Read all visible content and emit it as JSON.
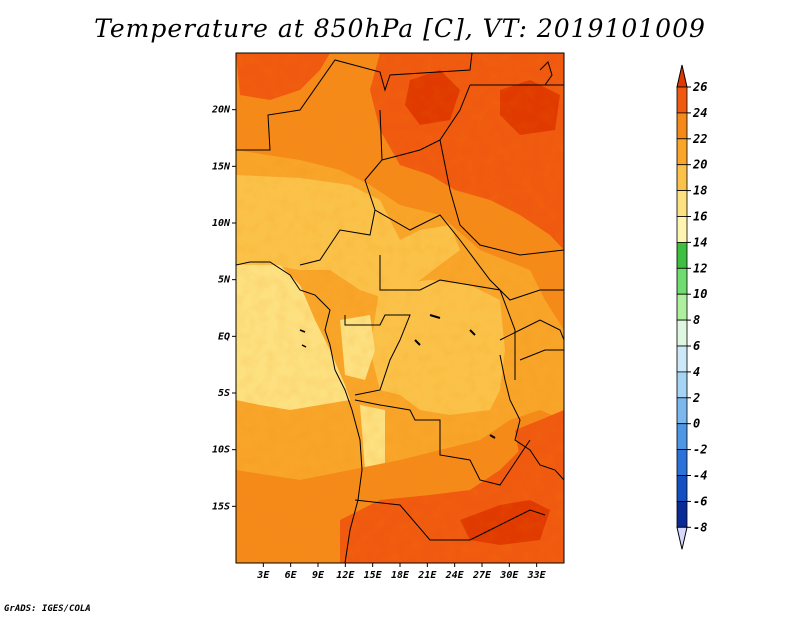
{
  "title": "Temperature at 850hPa [C], VT: 2019101009",
  "credit": "GrADS: IGES/COLA",
  "map": {
    "lon_range": [
      0,
      36
    ],
    "lat_range": [
      -20,
      25
    ],
    "lat_ticks": [
      {
        "value": 20,
        "label": "20N"
      },
      {
        "value": 15,
        "label": "15N"
      },
      {
        "value": 10,
        "label": "10N"
      },
      {
        "value": 5,
        "label": "5N"
      },
      {
        "value": 0,
        "label": "EQ"
      },
      {
        "value": -5,
        "label": "5S"
      },
      {
        "value": -10,
        "label": "10S"
      },
      {
        "value": -15,
        "label": "15S"
      }
    ],
    "lon_ticks": [
      {
        "value": 3,
        "label": "3E"
      },
      {
        "value": 6,
        "label": "6E"
      },
      {
        "value": 9,
        "label": "9E"
      },
      {
        "value": 12,
        "label": "12E"
      },
      {
        "value": 15,
        "label": "15E"
      },
      {
        "value": 18,
        "label": "18E"
      },
      {
        "value": 21,
        "label": "21E"
      },
      {
        "value": 24,
        "label": "24E"
      },
      {
        "value": 27,
        "label": "27E"
      },
      {
        "value": 30,
        "label": "30E"
      },
      {
        "value": 33,
        "label": "33E"
      }
    ]
  },
  "colorbar": {
    "levels": [
      "26",
      "24",
      "22",
      "20",
      "18",
      "16",
      "14",
      "12",
      "10",
      "8",
      "6",
      "4",
      "2",
      "0",
      "-2",
      "-4",
      "-6",
      "-8"
    ],
    "colors": [
      "#e03a00",
      "#f05a10",
      "#f58a1a",
      "#f8a52a",
      "#fbc24a",
      "#fde080",
      "#fff4b0",
      "#3fbf3f",
      "#6fdc6f",
      "#aef0a0",
      "#dff7e0",
      "#cde9f8",
      "#a6d4f5",
      "#7cb8ee",
      "#4f97e4",
      "#2b73d8",
      "#1550c2",
      "#0a2a96",
      "#000a55",
      "#d8d8ff"
    ],
    "top_triangle_color": "#e03a00",
    "bottom_triangle_color": "#d8d8ff"
  }
}
